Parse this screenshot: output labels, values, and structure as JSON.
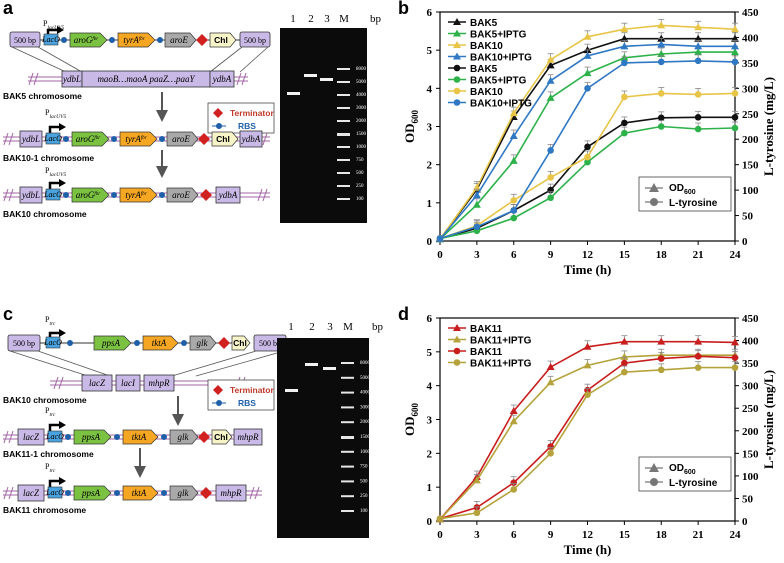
{
  "panels": {
    "a": {
      "letter": "a",
      "promoter_base": "P",
      "promoter_sub": "lacUV5",
      "lacO": "LacO",
      "flank_left": "500 bp",
      "flank_right": "500 bp",
      "aroG": "aroG",
      "tyrA": "tyrA",
      "fbr": "fbr",
      "aroE": "aroE",
      "chl": "Chl",
      "ydbL": "ydbL",
      "ydbA": "ydbA",
      "chrom_middle": "maoB…maoA paaZ…paaY",
      "bak5_chrom": "BAK5 chromosome",
      "bak10_1_chrom": "BAK10-1 chromosome",
      "bak10_chrom": "BAK10 chromosome",
      "legend_terminator": "Terminator",
      "legend_rbs": "RBS",
      "gel_lanes": [
        "1",
        "2",
        "3",
        "M"
      ],
      "gel_unit": "bp",
      "ladder": [
        "8000",
        "5000",
        "4000",
        "3000",
        "2000",
        "1500",
        "1000",
        "750",
        "500",
        "250",
        "100"
      ]
    },
    "c": {
      "letter": "c",
      "promoter_base": "P",
      "promoter_sub": "trc",
      "lacO": "LacO",
      "flank_left": "500 bp",
      "flank_right": "500 bp",
      "ppsA": "ppsA",
      "tktA": "tktA",
      "glk": "glk",
      "chl": "Chl",
      "lacZ": "lacZ",
      "lacI": "lacI",
      "mhpR": "mhpR",
      "bak10_chrom": "BAK10 chromosome",
      "bak11_1_chrom": "BAK11-1 chromosome",
      "bak11_chrom": "BAK11 chromosome",
      "legend_terminator": "Terminator",
      "legend_rbs": "RBS",
      "gel_lanes": [
        "1",
        "2",
        "3",
        "M"
      ],
      "gel_unit": "bp",
      "ladder": [
        "8000",
        "5000",
        "4000",
        "3000",
        "2000",
        "1500",
        "1000",
        "750",
        "500",
        "250",
        "100"
      ]
    }
  },
  "chart_data": [
    {
      "panel": "b",
      "type": "line",
      "xlabel": "Time (h)",
      "ylabel_left": "OD600",
      "ylabel_left_base": "OD",
      "ylabel_left_sub": "600",
      "ylabel_right": "L-tyrosine (mg/L)",
      "x": [
        0,
        3,
        6,
        9,
        12,
        15,
        18,
        21,
        24
      ],
      "xlim": [
        0,
        24
      ],
      "ylim_left": [
        0,
        6
      ],
      "ylim_right": [
        0,
        450
      ],
      "yticks_left": [
        0,
        1,
        2,
        3,
        4,
        5,
        6
      ],
      "yticks_right": [
        0,
        50,
        100,
        150,
        200,
        250,
        300,
        350,
        400,
        450
      ],
      "legend_top": [
        "BAK5",
        "BAK5+IPTG",
        "BAK10",
        "BAK10+IPTG",
        "BAK5",
        "BAK5+IPTG",
        "BAK10",
        "BAK10+IPTG"
      ],
      "legend_marker_labels": [
        "OD600",
        "L-tyrosine"
      ],
      "legend_od_base": "OD",
      "legend_od_sub": "600",
      "legend_tyr": "L-tyrosine",
      "series": [
        {
          "name": "BAK5",
          "measure": "OD600",
          "axis": "left",
          "color": "#111111",
          "values": [
            0.05,
            1.35,
            3.25,
            4.6,
            5.0,
            5.3,
            5.3,
            5.3,
            5.3
          ]
        },
        {
          "name": "BAK5+IPTG",
          "measure": "OD600",
          "axis": "left",
          "color": "#2db24a",
          "values": [
            0.05,
            0.95,
            2.1,
            3.75,
            4.4,
            4.8,
            4.9,
            4.95,
            4.95
          ]
        },
        {
          "name": "BAK10",
          "measure": "OD600",
          "axis": "left",
          "color": "#e8c547",
          "values": [
            0.05,
            1.4,
            3.35,
            4.75,
            5.35,
            5.55,
            5.65,
            5.6,
            5.55
          ]
        },
        {
          "name": "BAK10+IPTG",
          "measure": "OD600",
          "axis": "left",
          "color": "#2f78c4",
          "values": [
            0.05,
            1.2,
            2.75,
            4.2,
            4.85,
            5.1,
            5.15,
            5.1,
            5.1
          ]
        },
        {
          "name": "BAK5",
          "measure": "L-tyrosine",
          "axis": "right",
          "color": "#111111",
          "values": [
            5,
            25,
            60,
            100,
            185,
            232,
            242,
            243,
            243
          ]
        },
        {
          "name": "BAK5+IPTG",
          "measure": "L-tyrosine",
          "axis": "right",
          "color": "#2db24a",
          "values": [
            5,
            20,
            45,
            85,
            155,
            212,
            225,
            220,
            222
          ]
        },
        {
          "name": "BAK10",
          "measure": "L-tyrosine",
          "axis": "right",
          "color": "#e8c547",
          "values": [
            5,
            30,
            80,
            125,
            165,
            283,
            290,
            288,
            290
          ]
        },
        {
          "name": "BAK10+IPTG",
          "measure": "L-tyrosine",
          "axis": "right",
          "color": "#2f78c4",
          "values": [
            5,
            28,
            60,
            178,
            300,
            350,
            352,
            354,
            352
          ]
        }
      ]
    },
    {
      "panel": "d",
      "type": "line",
      "xlabel": "Time (h)",
      "ylabel_left": "OD600",
      "ylabel_left_base": "OD",
      "ylabel_left_sub": "600",
      "ylabel_right": "L-tyrosine (mg/L)",
      "x": [
        0,
        3,
        6,
        9,
        12,
        15,
        18,
        21,
        24
      ],
      "xlim": [
        0,
        24
      ],
      "ylim_left": [
        0,
        6
      ],
      "ylim_right": [
        0,
        450
      ],
      "yticks_left": [
        0,
        1,
        2,
        3,
        4,
        5,
        6
      ],
      "yticks_right": [
        0,
        50,
        100,
        150,
        200,
        250,
        300,
        350,
        400,
        450
      ],
      "legend_top": [
        "BAK11",
        "BAK11+IPTG",
        "BAK11",
        "BAK11+IPTG"
      ],
      "legend_marker_labels": [
        "OD600",
        "L-tyrosine"
      ],
      "legend_od_base": "OD",
      "legend_od_sub": "600",
      "legend_tyr": "L-tyrosine",
      "series": [
        {
          "name": "BAK11",
          "measure": "OD600",
          "axis": "left",
          "color": "#c81e1e",
          "values": [
            0.05,
            1.3,
            3.25,
            4.55,
            5.15,
            5.3,
            5.3,
            5.3,
            5.28
          ]
        },
        {
          "name": "BAK11+IPTG",
          "measure": "OD600",
          "axis": "left",
          "color": "#b5a23a",
          "values": [
            0.05,
            1.2,
            2.95,
            4.1,
            4.6,
            4.85,
            4.9,
            4.9,
            4.9
          ]
        },
        {
          "name": "BAK11",
          "measure": "L-tyrosine",
          "axis": "right",
          "color": "#c81e1e",
          "values": [
            5,
            30,
            85,
            165,
            290,
            350,
            360,
            365,
            362
          ]
        },
        {
          "name": "BAK11+IPTG",
          "measure": "L-tyrosine",
          "axis": "right",
          "color": "#b5a23a",
          "values": [
            5,
            18,
            70,
            150,
            280,
            330,
            335,
            340,
            340
          ]
        }
      ]
    }
  ]
}
